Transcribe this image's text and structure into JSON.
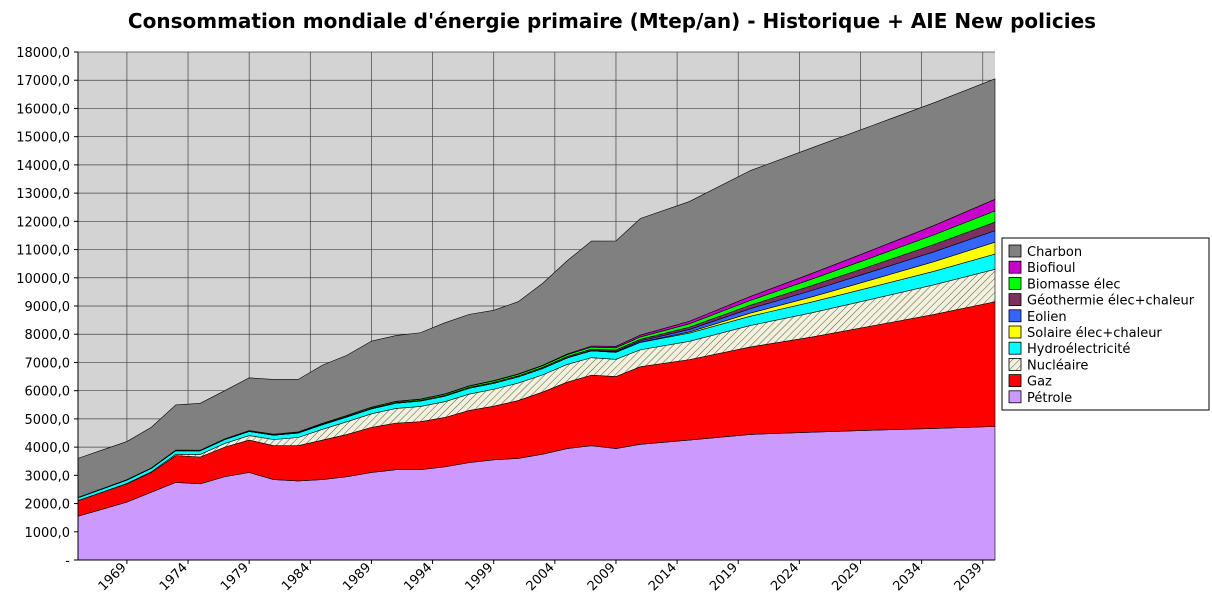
{
  "chart_data": {
    "type": "stacked_area",
    "title": "Consommation mondiale d'énergie primaire (Mtep/an) - Historique + AIE New policies",
    "x": [
      1965,
      1967,
      1969,
      1971,
      1973,
      1975,
      1977,
      1979,
      1981,
      1983,
      1985,
      1987,
      1989,
      1991,
      1993,
      1995,
      1997,
      1999,
      2001,
      2003,
      2005,
      2007,
      2009,
      2011,
      2015,
      2020,
      2025,
      2030,
      2035,
      2040
    ],
    "xlim": [
      1965,
      2040
    ],
    "xticks": [
      1969,
      1974,
      1979,
      1984,
      1989,
      1994,
      1999,
      2004,
      2009,
      2014,
      2019,
      2024,
      2029,
      2034,
      2039
    ],
    "ylim": [
      0,
      18000
    ],
    "yticks": [
      {
        "value": 0,
        "label": "-"
      },
      {
        "value": 1000,
        "label": "1000,0"
      },
      {
        "value": 2000,
        "label": "2000,0"
      },
      {
        "value": 3000,
        "label": "3000,0"
      },
      {
        "value": 4000,
        "label": "4000,0"
      },
      {
        "value": 5000,
        "label": "5000,0"
      },
      {
        "value": 6000,
        "label": "6000,0"
      },
      {
        "value": 7000,
        "label": "7000,0"
      },
      {
        "value": 8000,
        "label": "8000,0"
      },
      {
        "value": 9000,
        "label": "9000,0"
      },
      {
        "value": 10000,
        "label": "10000,0"
      },
      {
        "value": 11000,
        "label": "11000,0"
      },
      {
        "value": 12000,
        "label": "12000,0"
      },
      {
        "value": 13000,
        "label": "13000,0"
      },
      {
        "value": 14000,
        "label": "14000,0"
      },
      {
        "value": 15000,
        "label": "15000,0"
      },
      {
        "value": 16000,
        "label": "16000,0"
      },
      {
        "value": 17000,
        "label": "17000,0"
      },
      {
        "value": 18000,
        "label": "18000,0"
      }
    ],
    "grid": true,
    "legend": "right",
    "series": [
      {
        "name": "Pétrole",
        "color": "#cc99ff",
        "values": [
          1550,
          1800,
          2050,
          2400,
          2750,
          2700,
          2950,
          3100,
          2850,
          2800,
          2850,
          2950,
          3100,
          3200,
          3200,
          3300,
          3450,
          3550,
          3600,
          3750,
          3950,
          4050,
          3950,
          4100,
          4250,
          4450,
          4530,
          4600,
          4660,
          4730
        ]
      },
      {
        "name": "Gaz",
        "color": "#ff0000",
        "values": [
          550,
          600,
          650,
          700,
          950,
          950,
          1050,
          1150,
          1200,
          1250,
          1400,
          1500,
          1600,
          1650,
          1700,
          1750,
          1850,
          1900,
          2050,
          2200,
          2350,
          2500,
          2550,
          2750,
          2850,
          3100,
          3370,
          3700,
          4040,
          4420
        ]
      },
      {
        "name": "Nucléaire",
        "color": "#f2f2dc",
        "hatch": true,
        "values": [
          5,
          10,
          15,
          25,
          50,
          90,
          130,
          160,
          220,
          290,
          380,
          450,
          480,
          520,
          540,
          560,
          580,
          600,
          620,
          610,
          630,
          620,
          610,
          600,
          650,
          760,
          860,
          950,
          1050,
          1150
        ]
      },
      {
        "name": "Hydroélectricité",
        "color": "#00ffff",
        "values": [
          100,
          105,
          115,
          120,
          125,
          130,
          135,
          145,
          150,
          155,
          165,
          170,
          175,
          185,
          190,
          195,
          205,
          210,
          215,
          220,
          230,
          240,
          250,
          260,
          290,
          330,
          380,
          430,
          480,
          540
        ]
      },
      {
        "name": "Solaire élec+chaleur",
        "color": "#ffff00",
        "values": [
          0,
          0,
          0,
          0,
          0,
          0,
          0,
          0,
          0,
          0,
          0,
          0,
          0,
          0,
          0,
          0,
          0,
          0,
          0,
          0,
          0,
          0,
          0,
          10,
          40,
          110,
          180,
          260,
          340,
          420
        ]
      },
      {
        "name": "Eolien",
        "color": "#3366ff",
        "values": [
          0,
          0,
          0,
          0,
          0,
          0,
          0,
          0,
          0,
          0,
          0,
          0,
          0,
          0,
          0,
          0,
          0,
          1,
          3,
          5,
          10,
          15,
          30,
          45,
          90,
          160,
          230,
          290,
          350,
          410
        ]
      },
      {
        "name": "Géothermie élec+chaleur",
        "color": "#7e3060",
        "values": [
          5,
          5,
          5,
          5,
          6,
          7,
          8,
          10,
          12,
          15,
          18,
          20,
          22,
          25,
          26,
          28,
          30,
          32,
          35,
          38,
          40,
          45,
          50,
          55,
          80,
          120,
          170,
          210,
          260,
          300
        ]
      },
      {
        "name": "Biomasse élec",
        "color": "#00ff00",
        "values": [
          10,
          11,
          12,
          13,
          14,
          15,
          16,
          18,
          20,
          22,
          25,
          28,
          30,
          35,
          38,
          42,
          48,
          52,
          55,
          60,
          65,
          72,
          78,
          85,
          120,
          170,
          230,
          290,
          340,
          400
        ]
      },
      {
        "name": "Biofioul",
        "color": "#cc00cc",
        "values": [
          0,
          0,
          0,
          0,
          0,
          0,
          0,
          2,
          5,
          5,
          6,
          6,
          7,
          8,
          8,
          9,
          10,
          12,
          14,
          18,
          25,
          40,
          55,
          65,
          90,
          140,
          200,
          260,
          330,
          410
        ]
      },
      {
        "name": "Charbon",
        "color": "#808080",
        "values": [
          1380,
          1370,
          1350,
          1440,
          1600,
          1660,
          1710,
          1870,
          1940,
          1860,
          2060,
          2130,
          2340,
          2330,
          2350,
          2520,
          2530,
          2490,
          2560,
          2900,
          3300,
          3720,
          3730,
          4130,
          4240,
          4460,
          4450,
          4410,
          4350,
          4270
        ]
      }
    ]
  }
}
